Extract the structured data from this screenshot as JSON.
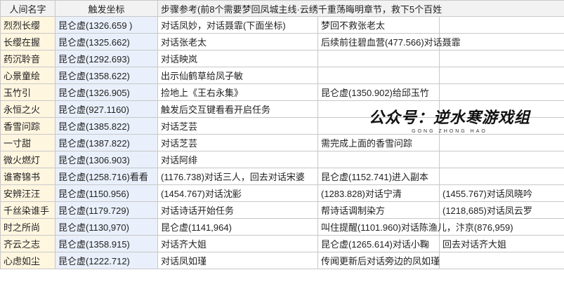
{
  "table": {
    "header": [
      "人间名字",
      "触发坐标",
      "步骤参考(前8个需要梦回凤城主线·云绣千重荡晦明章节，救下5个百姓"
    ],
    "rows": [
      [
        "烈烈长缨",
        "昆仑虚(1326.659 )",
        "对话凤妙，对话聂霏(下面坐标)",
        "梦回不救张老太"
      ],
      [
        "长缨在握",
        "昆仑虚(1325.662)",
        "对话张老太",
        "后续前往碧血营(477.566)对话聂霏"
      ],
      [
        "药沉聆音",
        "昆仑虚(1292.693)",
        "对话映岚"
      ],
      [
        "心景童绘",
        "昆仑虚(1358.622)",
        "出示仙鹤草给凤子敏"
      ],
      [
        "玉竹引",
        "昆仑虚(1326.905)",
        "捡地上《王右永集》",
        "昆仑虚(1350.902)给邱玉竹"
      ],
      [
        "永恒之火",
        "昆仑虚(927.1160)",
        "触发后交互键看看开启任务"
      ],
      [
        "香雪问踪",
        "昆仑虚(1385.822)",
        "对话芝芸"
      ],
      [
        "一寸甜",
        "昆仑虚(1387.822)",
        "对话芝芸",
        "需完成上面的香雪问踪"
      ],
      [
        "微火燃灯",
        "昆仑虚(1306.903)",
        "对话阿绯"
      ],
      [
        "谁寄锦书",
        "昆仑虚(1258.716)看看",
        "(1176.738)对话三人，回去对话宋婆",
        "昆仑虚(1152.741)进入副本"
      ],
      [
        "安辨汪汪",
        "昆仑虚(1150.956)",
        "(1454.767)对话沈彨",
        "(1283.828)对话宁清",
        "(1455.767)对话凤晓吟"
      ],
      [
        "千丝染谁手",
        "昆仑虚(1179.729)",
        "对话诗话开始任务",
        "帮诗话调制染方",
        "(1218,685)对话凤云罗"
      ],
      [
        "时之所尚",
        "昆仑虚(1130,970)",
        "昆仑虚(1141,964)",
        "叫住提醒(1101.960)对话陈渔儿，汴京(876,959)"
      ],
      [
        "齐云之志",
        "昆仑虚(1358.915)",
        "对话齐大姐",
        "昆仑虚(1265.614)对话小鞠",
        "回去对话齐大姐"
      ],
      [
        "心虑如尘",
        "昆仑虚(1222.712)",
        "对话凤如瑾",
        "传闻更新后对话旁边的凤如瑾"
      ]
    ]
  },
  "watermark": {
    "title": "公众号：逆水寒游戏组",
    "subtitle": "GONG ZHONG HAO"
  }
}
